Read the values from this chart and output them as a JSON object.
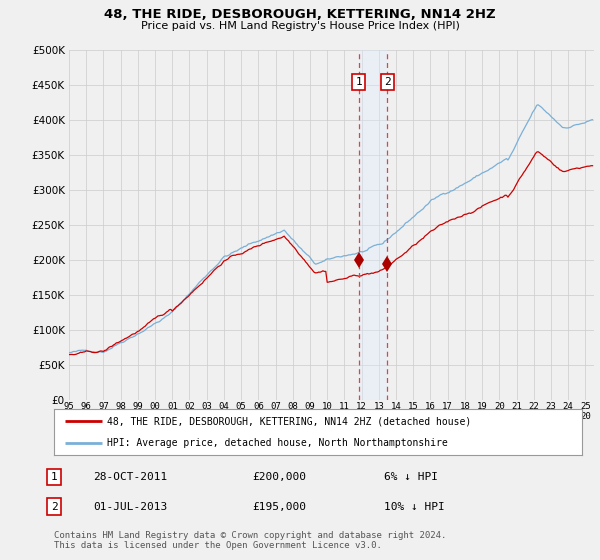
{
  "title": "48, THE RIDE, DESBOROUGH, KETTERING, NN14 2HZ",
  "subtitle": "Price paid vs. HM Land Registry's House Price Index (HPI)",
  "background_color": "#f0f0f0",
  "plot_bg_color": "#f0f0f0",
  "grid_color": "#cccccc",
  "hpi_color": "#7ab0d8",
  "price_color": "#cc0000",
  "shade_color": "#ddeeff",
  "dashed_color": "#dd4444",
  "ylim": [
    0,
    500000
  ],
  "yticks": [
    0,
    50000,
    100000,
    150000,
    200000,
    250000,
    300000,
    350000,
    400000,
    450000,
    500000
  ],
  "legend_entry1": "48, THE RIDE, DESBOROUGH, KETTERING, NN14 2HZ (detached house)",
  "legend_entry2": "HPI: Average price, detached house, North Northamptonshire",
  "sale1_date": 2011.83,
  "sale1_price": 200000,
  "sale1_label": "1",
  "sale2_date": 2013.5,
  "sale2_price": 195000,
  "sale2_label": "2",
  "footer": "Contains HM Land Registry data © Crown copyright and database right 2024.\nThis data is licensed under the Open Government Licence v3.0.",
  "xstart": 1995.0,
  "xend": 2025.5
}
